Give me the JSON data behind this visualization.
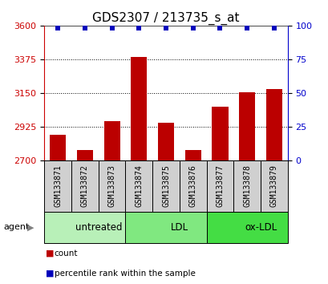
{
  "title": "GDS2307 / 213735_s_at",
  "samples": [
    "GSM133871",
    "GSM133872",
    "GSM133873",
    "GSM133874",
    "GSM133875",
    "GSM133876",
    "GSM133877",
    "GSM133878",
    "GSM133879"
  ],
  "counts": [
    2870,
    2770,
    2960,
    3390,
    2950,
    2770,
    3060,
    3155,
    3175
  ],
  "groups": [
    {
      "label": "untreated",
      "start": 0,
      "end": 3,
      "color": "#b8f0b8"
    },
    {
      "label": "LDL",
      "start": 3,
      "end": 6,
      "color": "#80e880"
    },
    {
      "label": "ox-LDL",
      "start": 6,
      "end": 9,
      "color": "#44dd44"
    }
  ],
  "bar_color": "#bb0000",
  "dot_color": "#0000bb",
  "ylim_left": [
    2700,
    3600
  ],
  "yticks_left": [
    2700,
    2925,
    3150,
    3375,
    3600
  ],
  "ylim_right": [
    0,
    100
  ],
  "yticks_right": [
    0,
    25,
    50,
    75,
    100
  ],
  "title_fontsize": 11,
  "tick_fontsize": 8,
  "bar_bottom": 2700,
  "sample_box_color": "#d0d0d0",
  "agent_label": "agent",
  "legend_count_label": "count",
  "legend_pct_label": "percentile rank within the sample"
}
